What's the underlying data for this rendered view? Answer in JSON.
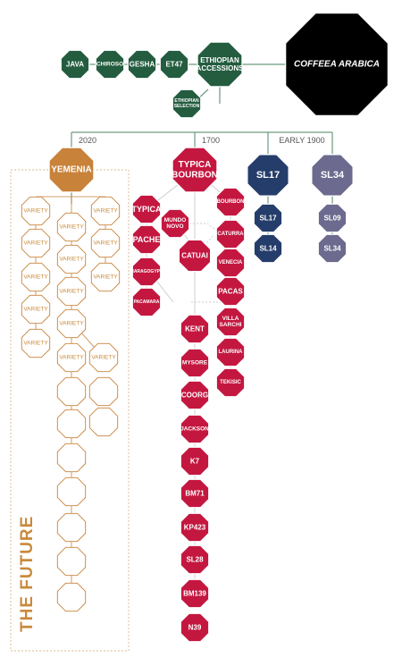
{
  "colors": {
    "green": "#235c3f",
    "black": "#000000",
    "red": "#c41740",
    "navy": "#253d6a",
    "purple": "#6c6a8e",
    "gold": "#c8823a",
    "line": "#6d9a80",
    "red_line": "#d7d7d7"
  },
  "root": {
    "label": "COFFEEA ARABICA"
  },
  "accessions": {
    "main": {
      "line1": "ETHIOPIAN",
      "line2": "ACCESSIONS"
    },
    "selection": {
      "line1": "ETHIOPIAN",
      "line2": "SELECTION"
    },
    "items": [
      "JAVA",
      "CHIROSO",
      "GESHA",
      "ET47"
    ]
  },
  "eras": {
    "e2020": "2020",
    "e1700": "1700",
    "e1900": "EARLY 1900"
  },
  "yemenia": {
    "label": "YEMENIA",
    "variety_label": "VARIETY",
    "future_label": "THE FUTURE"
  },
  "typica_bourbon": {
    "line1": "TYPICA",
    "line2": "BOURBON"
  },
  "typica_group": [
    "TYPICA",
    "PACHE",
    "MARAGOGYPE",
    "PACAMARA"
  ],
  "mundo_novo": {
    "line1": "MUNDO",
    "line2": "NOVO"
  },
  "catuai": {
    "label": "CATUAI"
  },
  "bourbon_group": [
    {
      "line1": "BOURBON",
      "line2": ""
    },
    {
      "line1": "CATURRA",
      "line2": ""
    },
    {
      "line1": "VENECIA",
      "line2": ""
    },
    {
      "line1": "PACAS",
      "line2": ""
    },
    {
      "line1": "VILLA",
      "line2": "SARCHI"
    },
    {
      "line1": "LAURINA",
      "line2": ""
    },
    {
      "line1": "TEKISIC",
      "line2": ""
    }
  ],
  "main_chain": [
    "KENT",
    "MYSORE",
    "COORG",
    "JACKSON",
    "K7",
    "BM71",
    "KP423",
    "SL28",
    "BM139",
    "N39"
  ],
  "sl17": {
    "label": "SL17",
    "children": [
      "SL17",
      "SL14"
    ]
  },
  "sl34": {
    "label": "SL34",
    "children": [
      "SL09",
      "SL34"
    ]
  }
}
